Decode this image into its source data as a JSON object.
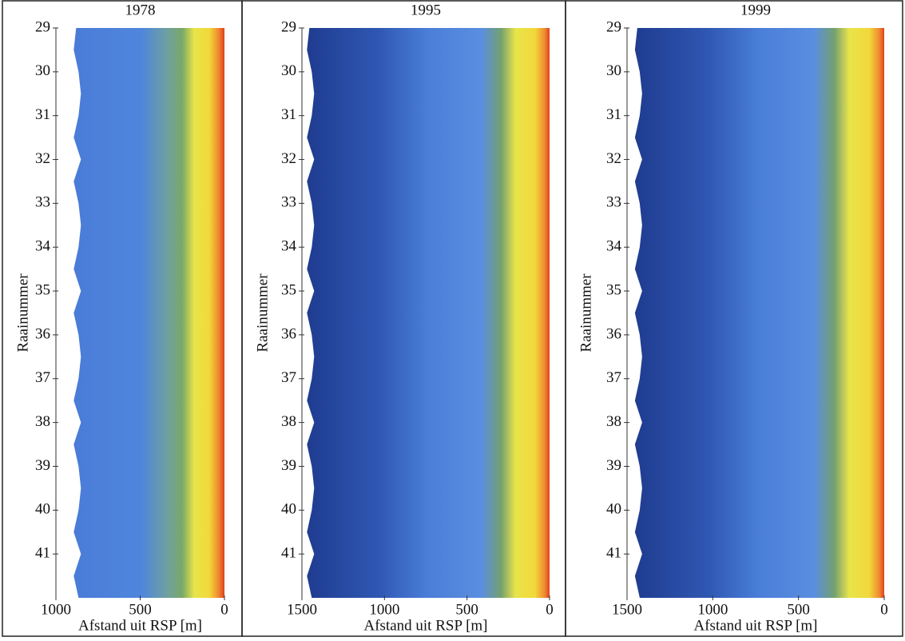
{
  "chart_data": [
    {
      "type": "contour",
      "title": "1978",
      "xlabel": "Afstand uit RSP [m]",
      "ylabel": "Raainummer",
      "xlim": [
        1000,
        0
      ],
      "xticks": [
        1000,
        500,
        0
      ],
      "ylim": [
        29,
        42
      ],
      "yticks": [
        29,
        30,
        31,
        32,
        33,
        34,
        35,
        36,
        37,
        38,
        39,
        40,
        41
      ]
    },
    {
      "type": "contour",
      "title": "1995",
      "xlabel": "Afstand uit RSP [m]",
      "ylabel": "Raainummer",
      "xlim": [
        1500,
        0
      ],
      "xticks": [
        1500,
        1000,
        500,
        0
      ],
      "ylim": [
        29,
        42
      ],
      "yticks": [
        29,
        30,
        31,
        32,
        33,
        34,
        35,
        36,
        37,
        38,
        39,
        40,
        41
      ]
    },
    {
      "type": "contour",
      "title": "1999",
      "xlabel": "Afstand uit RSP [m]",
      "ylabel": "Raainummer",
      "xlim": [
        1500,
        0
      ],
      "xticks": [
        1500,
        1000,
        500,
        0
      ],
      "ylim": [
        29,
        42
      ],
      "yticks": [
        29,
        30,
        31,
        32,
        33,
        34,
        35,
        36,
        37,
        38,
        39,
        40,
        41
      ]
    }
  ]
}
